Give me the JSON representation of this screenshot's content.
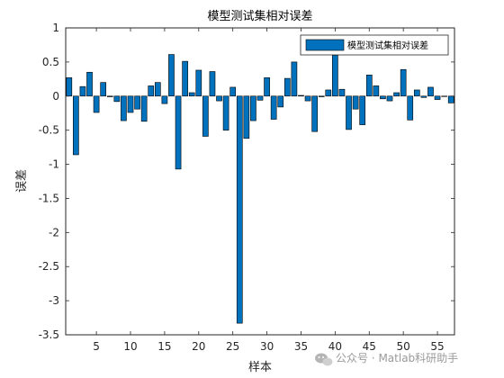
{
  "chart_data": {
    "type": "bar",
    "title": "模型测试集相对误差",
    "xlabel": "样本",
    "ylabel": "误差",
    "legend": [
      "模型测试集相对误差"
    ],
    "legend_location": "top-right",
    "xlim": [
      0.5,
      57.5
    ],
    "ylim": [
      -3.5,
      1
    ],
    "xticks": [
      5,
      10,
      15,
      20,
      25,
      30,
      35,
      40,
      45,
      50,
      55
    ],
    "yticks": [
      -3.5,
      -3,
      -2.5,
      -2,
      -1.5,
      -1,
      -0.5,
      0,
      0.5,
      1
    ],
    "bar_color": "#0072BD",
    "edge_color": "#000000",
    "x": [
      1,
      2,
      3,
      4,
      5,
      6,
      7,
      8,
      9,
      10,
      11,
      12,
      13,
      14,
      15,
      16,
      17,
      18,
      19,
      20,
      21,
      22,
      23,
      24,
      25,
      26,
      27,
      28,
      29,
      30,
      31,
      32,
      33,
      34,
      35,
      36,
      37,
      38,
      39,
      40,
      41,
      42,
      43,
      44,
      45,
      46,
      47,
      48,
      49,
      50,
      51,
      52,
      53,
      54,
      55,
      56,
      57
    ],
    "values": [
      0.27,
      -0.86,
      0.14,
      0.35,
      -0.24,
      0.2,
      -0.01,
      -0.08,
      -0.36,
      -0.24,
      -0.19,
      -0.37,
      0.15,
      0.2,
      -0.11,
      0.61,
      -1.07,
      0.51,
      0.05,
      0.38,
      -0.59,
      0.36,
      -0.07,
      -0.5,
      0.13,
      -3.33,
      -0.62,
      -0.36,
      -0.06,
      0.27,
      -0.34,
      -0.16,
      0.26,
      0.5,
      0.01,
      -0.07,
      -0.52,
      -0.01,
      0.09,
      0.6,
      0.1,
      -0.49,
      -0.19,
      -0.42,
      0.31,
      0.15,
      -0.04,
      -0.07,
      0.05,
      0.39,
      -0.35,
      0.09,
      -0.02,
      0.13,
      -0.05,
      0.0,
      -0.1
    ]
  },
  "watermark": {
    "text": "公众号 · Matlab科研助手",
    "icon": "wechat-icon"
  }
}
